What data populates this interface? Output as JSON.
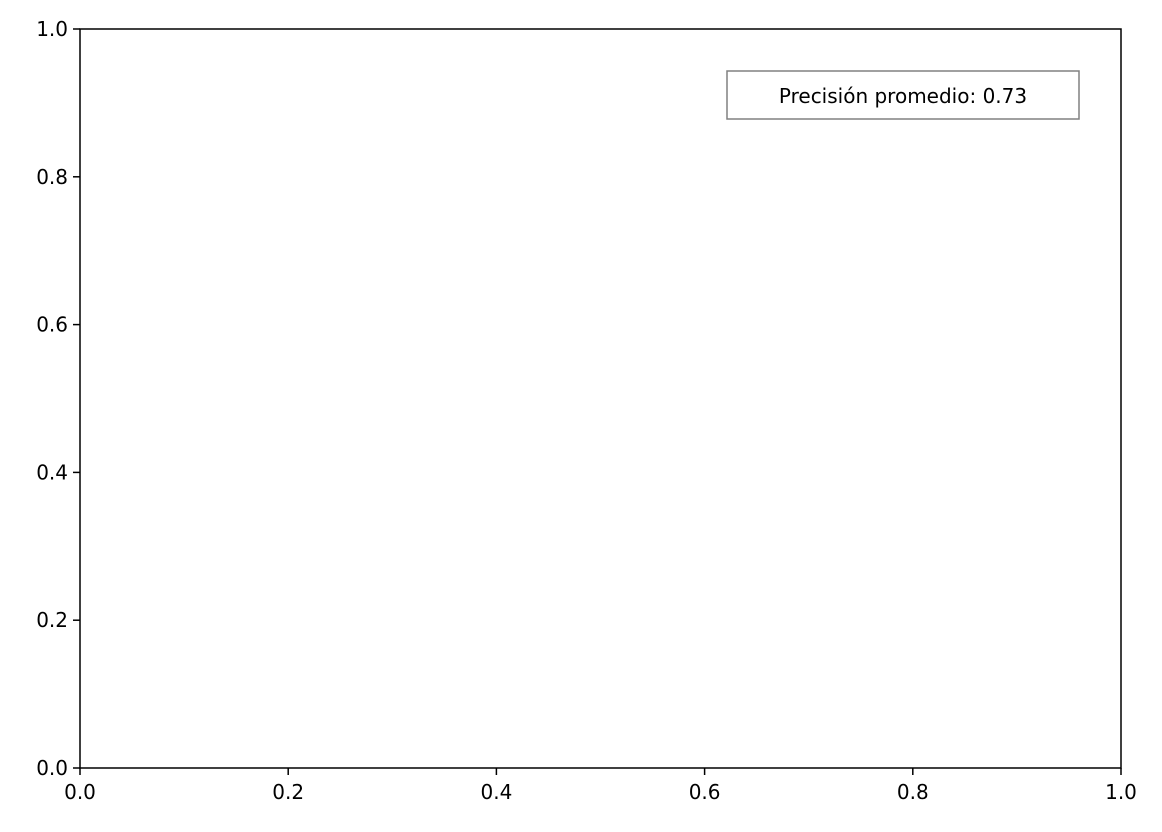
{
  "chart_data": {
    "type": "scatter",
    "title": "",
    "xlabel": "",
    "ylabel": "",
    "xlim": [
      0,
      1
    ],
    "ylim": [
      0,
      1
    ],
    "x_ticks": [
      0.0,
      0.2,
      0.4,
      0.6,
      0.8,
      1.0
    ],
    "y_ticks": [
      0.0,
      0.2,
      0.4,
      0.6,
      0.8,
      1.0
    ],
    "x_tick_labels": [
      "0.0",
      "0.2",
      "0.4",
      "0.6",
      "0.8",
      "1.0"
    ],
    "y_tick_labels": [
      "0.0",
      "0.2",
      "0.4",
      "0.6",
      "0.8",
      "1.0"
    ],
    "series": [],
    "grid": false,
    "annotation": {
      "text": "Precisión promedio: 0.73",
      "placement": "top-right",
      "box_edge_color": "#808080"
    }
  }
}
